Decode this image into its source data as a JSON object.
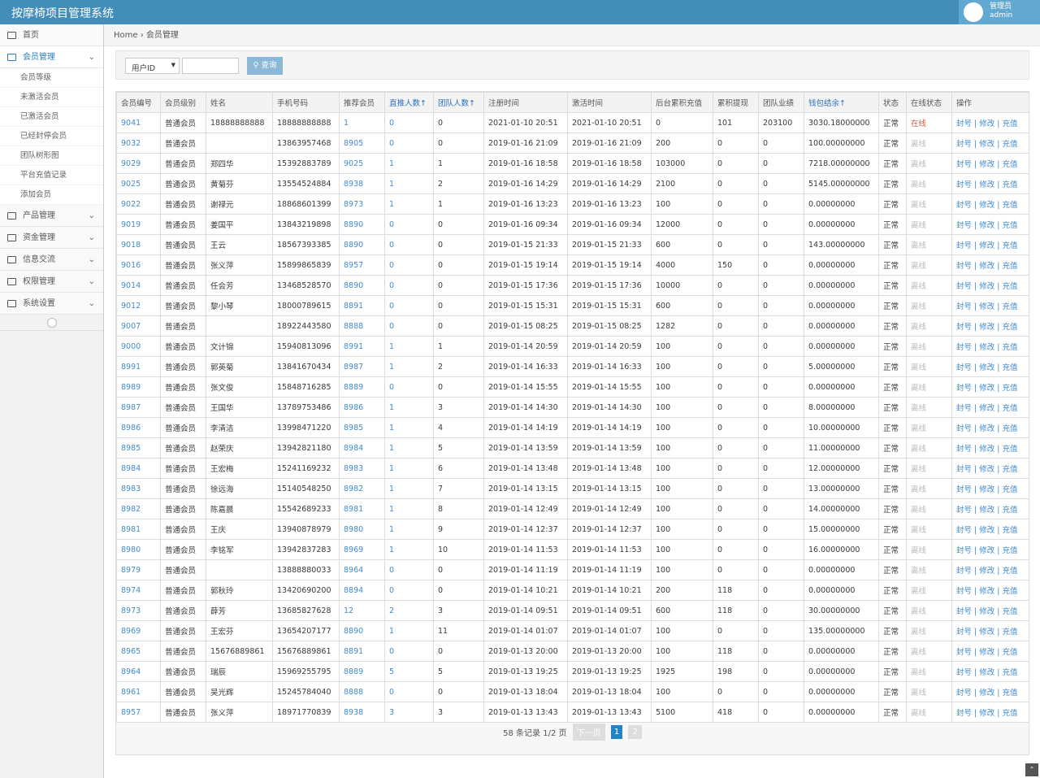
{
  "header": {
    "title": "按摩椅项目管理系统",
    "user_role": "管理员",
    "user_name": "admin"
  },
  "sidebar": {
    "items": [
      "首页",
      "会员管理",
      "产品管理",
      "资金管理",
      "信息交流",
      "权限管理",
      "系统设置"
    ],
    "submenu": [
      "会员等级",
      "未激活会员",
      "已激活会员",
      "已经封停会员",
      "团队树形图",
      "平台充值记录",
      "添加会员"
    ]
  },
  "breadcrumb": [
    "Home",
    "会员管理"
  ],
  "search": {
    "select": "用户ID",
    "button": "查询"
  },
  "table": {
    "columns": [
      "会员编号",
      "会员级别",
      "姓名",
      "手机号码",
      "推荐会员",
      "直推人数↑",
      "团队人数↑",
      "注册时间",
      "激活时间",
      "后台累积充值",
      "累积提现",
      "团队业绩",
      "钱包结余↑",
      "状态",
      "在线状态",
      "操作"
    ],
    "actions": [
      "封号",
      "修改",
      "充值"
    ],
    "rows": [
      [
        "9041",
        "普通会员",
        "18888888888",
        "18888888888",
        "1",
        "0",
        "0",
        "2021-01-10 20:51",
        "2021-01-10 20:51",
        "0",
        "101",
        "203100",
        "3030.18000000",
        "正常",
        "在线"
      ],
      [
        "9032",
        "普通会员",
        "",
        "13863957468",
        "8905",
        "0",
        "0",
        "2019-01-16 21:09",
        "2019-01-16 21:09",
        "200",
        "0",
        "0",
        "100.00000000",
        "正常",
        "离线"
      ],
      [
        "9029",
        "普通会员",
        "郑四华",
        "15392883789",
        "9025",
        "1",
        "1",
        "2019-01-16 18:58",
        "2019-01-16 18:58",
        "103000",
        "0",
        "0",
        "7218.00000000",
        "正常",
        "离线"
      ],
      [
        "9025",
        "普通会员",
        "黄菊芬",
        "13554524884",
        "8938",
        "1",
        "2",
        "2019-01-16 14:29",
        "2019-01-16 14:29",
        "2100",
        "0",
        "0",
        "5145.00000000",
        "正常",
        "离线"
      ],
      [
        "9022",
        "普通会员",
        "谢禄元",
        "18868601399",
        "8973",
        "1",
        "1",
        "2019-01-16 13:23",
        "2019-01-16 13:23",
        "100",
        "0",
        "0",
        "0.00000000",
        "正常",
        "离线"
      ],
      [
        "9019",
        "普通会员",
        "姜国平",
        "13843219898",
        "8890",
        "0",
        "0",
        "2019-01-16 09:34",
        "2019-01-16 09:34",
        "12000",
        "0",
        "0",
        "0.00000000",
        "正常",
        "离线"
      ],
      [
        "9018",
        "普通会员",
        "王云",
        "18567393385",
        "8890",
        "0",
        "0",
        "2019-01-15 21:33",
        "2019-01-15 21:33",
        "600",
        "0",
        "0",
        "143.00000000",
        "正常",
        "离线"
      ],
      [
        "9016",
        "普通会员",
        "张义萍",
        "15899865839",
        "8957",
        "0",
        "0",
        "2019-01-15 19:14",
        "2019-01-15 19:14",
        "4000",
        "150",
        "0",
        "0.00000000",
        "正常",
        "离线"
      ],
      [
        "9014",
        "普通会员",
        "任会芳",
        "13468528570",
        "8890",
        "0",
        "0",
        "2019-01-15 17:36",
        "2019-01-15 17:36",
        "10000",
        "0",
        "0",
        "0.00000000",
        "正常",
        "离线"
      ],
      [
        "9012",
        "普通会员",
        "黎小琴",
        "18000789615",
        "8891",
        "0",
        "0",
        "2019-01-15 15:31",
        "2019-01-15 15:31",
        "600",
        "0",
        "0",
        "0.00000000",
        "正常",
        "离线"
      ],
      [
        "9007",
        "普通会员",
        "",
        "18922443580",
        "8888",
        "0",
        "0",
        "2019-01-15 08:25",
        "2019-01-15 08:25",
        "1282",
        "0",
        "0",
        "0.00000000",
        "正常",
        "离线"
      ],
      [
        "9000",
        "普通会员",
        "文计锦",
        "15940813096",
        "8991",
        "1",
        "1",
        "2019-01-14 20:59",
        "2019-01-14 20:59",
        "100",
        "0",
        "0",
        "0.00000000",
        "正常",
        "离线"
      ],
      [
        "8991",
        "普通会员",
        "郭英菊",
        "13841670434",
        "8987",
        "1",
        "2",
        "2019-01-14 16:33",
        "2019-01-14 16:33",
        "100",
        "0",
        "0",
        "5.00000000",
        "正常",
        "离线"
      ],
      [
        "8989",
        "普通会员",
        "张文俊",
        "15848716285",
        "8889",
        "0",
        "0",
        "2019-01-14 15:55",
        "2019-01-14 15:55",
        "100",
        "0",
        "0",
        "0.00000000",
        "正常",
        "离线"
      ],
      [
        "8987",
        "普通会员",
        "王国华",
        "13789753486",
        "8986",
        "1",
        "3",
        "2019-01-14 14:30",
        "2019-01-14 14:30",
        "100",
        "0",
        "0",
        "8.00000000",
        "正常",
        "离线"
      ],
      [
        "8986",
        "普通会员",
        "李清洁",
        "13998471220",
        "8985",
        "1",
        "4",
        "2019-01-14 14:19",
        "2019-01-14 14:19",
        "100",
        "0",
        "0",
        "10.00000000",
        "正常",
        "离线"
      ],
      [
        "8985",
        "普通会员",
        "赵荣庆",
        "13942821180",
        "8984",
        "1",
        "5",
        "2019-01-14 13:59",
        "2019-01-14 13:59",
        "100",
        "0",
        "0",
        "11.00000000",
        "正常",
        "离线"
      ],
      [
        "8984",
        "普通会员",
        "王宏梅",
        "15241169232",
        "8983",
        "1",
        "6",
        "2019-01-14 13:48",
        "2019-01-14 13:48",
        "100",
        "0",
        "0",
        "12.00000000",
        "正常",
        "离线"
      ],
      [
        "8983",
        "普通会员",
        "徐远海",
        "15140548250",
        "8982",
        "1",
        "7",
        "2019-01-14 13:15",
        "2019-01-14 13:15",
        "100",
        "0",
        "0",
        "13.00000000",
        "正常",
        "离线"
      ],
      [
        "8982",
        "普通会员",
        "陈嘉晨",
        "15542689233",
        "8981",
        "1",
        "8",
        "2019-01-14 12:49",
        "2019-01-14 12:49",
        "100",
        "0",
        "0",
        "14.00000000",
        "正常",
        "离线"
      ],
      [
        "8981",
        "普通会员",
        "王庆",
        "13940878979",
        "8980",
        "1",
        "9",
        "2019-01-14 12:37",
        "2019-01-14 12:37",
        "100",
        "0",
        "0",
        "15.00000000",
        "正常",
        "离线"
      ],
      [
        "8980",
        "普通会员",
        "李铭军",
        "13942837283",
        "8969",
        "1",
        "10",
        "2019-01-14 11:53",
        "2019-01-14 11:53",
        "100",
        "0",
        "0",
        "16.00000000",
        "正常",
        "离线"
      ],
      [
        "8979",
        "普通会员",
        "",
        "13888880033",
        "8964",
        "0",
        "0",
        "2019-01-14 11:19",
        "2019-01-14 11:19",
        "100",
        "0",
        "0",
        "0.00000000",
        "正常",
        "离线"
      ],
      [
        "8974",
        "普通会员",
        "郭秋玲",
        "13420690200",
        "8894",
        "0",
        "0",
        "2019-01-14 10:21",
        "2019-01-14 10:21",
        "200",
        "118",
        "0",
        "0.00000000",
        "正常",
        "离线"
      ],
      [
        "8973",
        "普通会员",
        "薛芳",
        "13685827628",
        "12",
        "2",
        "3",
        "2019-01-14 09:51",
        "2019-01-14 09:51",
        "600",
        "118",
        "0",
        "30.00000000",
        "正常",
        "离线"
      ],
      [
        "8969",
        "普通会员",
        "王宏芬",
        "13654207177",
        "8890",
        "1",
        "11",
        "2019-01-14 01:07",
        "2019-01-14 01:07",
        "100",
        "0",
        "0",
        "135.00000000",
        "正常",
        "离线"
      ],
      [
        "8965",
        "普通会员",
        "15676889861",
        "15676889861",
        "8891",
        "0",
        "0",
        "2019-01-13 20:00",
        "2019-01-13 20:00",
        "100",
        "118",
        "0",
        "0.00000000",
        "正常",
        "离线"
      ],
      [
        "8964",
        "普通会员",
        "瑞辰",
        "15969255795",
        "8889",
        "5",
        "5",
        "2019-01-13 19:25",
        "2019-01-13 19:25",
        "1925",
        "198",
        "0",
        "0.00000000",
        "正常",
        "离线"
      ],
      [
        "8961",
        "普通会员",
        "吴光辉",
        "15245784040",
        "8888",
        "0",
        "0",
        "2019-01-13 18:04",
        "2019-01-13 18:04",
        "100",
        "0",
        "0",
        "0.00000000",
        "正常",
        "离线"
      ],
      [
        "8957",
        "普通会员",
        "张义萍",
        "18971770839",
        "8938",
        "3",
        "3",
        "2019-01-13 13:43",
        "2019-01-13 13:43",
        "5100",
        "418",
        "0",
        "0.00000000",
        "正常",
        "离线"
      ]
    ]
  },
  "pagination": {
    "summary": "58 条记录 1/2 页",
    "next": "下一页",
    "pages": [
      "1",
      "2"
    ]
  }
}
